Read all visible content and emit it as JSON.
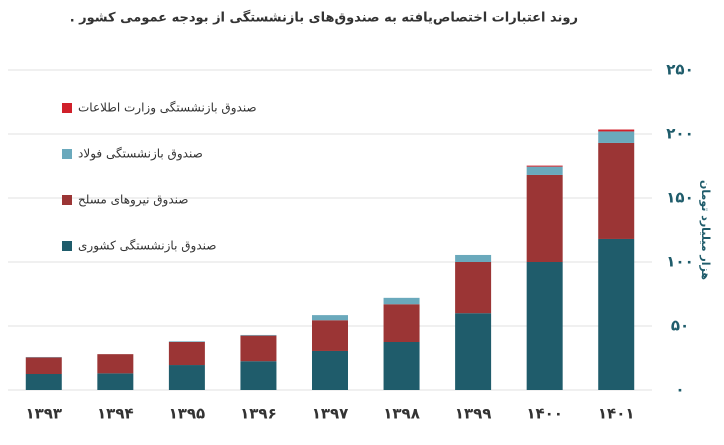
{
  "chart_data": {
    "type": "stacked_bar",
    "title": "روند اعتبارات اختصاص‌یافته به صندوق‌های بازنشستگی از بودجه عمومی کشور .",
    "y_label": "هزار میلیارد تومان",
    "categories": [
      "۱۳۹۳",
      "۱۳۹۴",
      "۱۳۹۵",
      "۱۳۹۶",
      "۱۳۹۷",
      "۱۳۹۸",
      "۱۳۹۹",
      "۱۴۰۰",
      "۱۴۰۱"
    ],
    "series": [
      {
        "name": "صندوق بازنشستگی کشوری",
        "color": "#1f5c6b",
        "values": [
          12.5,
          13,
          19.5,
          22.5,
          30.5,
          37.5,
          60,
          100,
          118
        ]
      },
      {
        "name": "صندوق نیروهای مسلح",
        "color": "#9b3535",
        "values": [
          13,
          15,
          18,
          20,
          24,
          29.5,
          40,
          68,
          75
        ]
      },
      {
        "name": "صندوق بازنشستگی فولاد",
        "color": "#6aa9bc",
        "values": [
          0.3,
          0,
          0.5,
          0.5,
          4,
          5,
          5.5,
          6.5,
          9
        ]
      },
      {
        "name": "صندوق بازنشستگی وزارت اطلاعات",
        "color": "#d0202a",
        "values": [
          0,
          0,
          0,
          0,
          0,
          0,
          0,
          0.8,
          1.5
        ]
      }
    ],
    "ylim": [
      0,
      250
    ],
    "yticks": [
      {
        "value": 0,
        "label": "۰"
      },
      {
        "value": 50,
        "label": "۵۰"
      },
      {
        "value": 100,
        "label": "۱۰۰"
      },
      {
        "value": 150,
        "label": "۱۵۰"
      },
      {
        "value": 200,
        "label": "۲۰۰"
      },
      {
        "value": 250,
        "label": "۲۵۰"
      }
    ],
    "grid": true
  }
}
